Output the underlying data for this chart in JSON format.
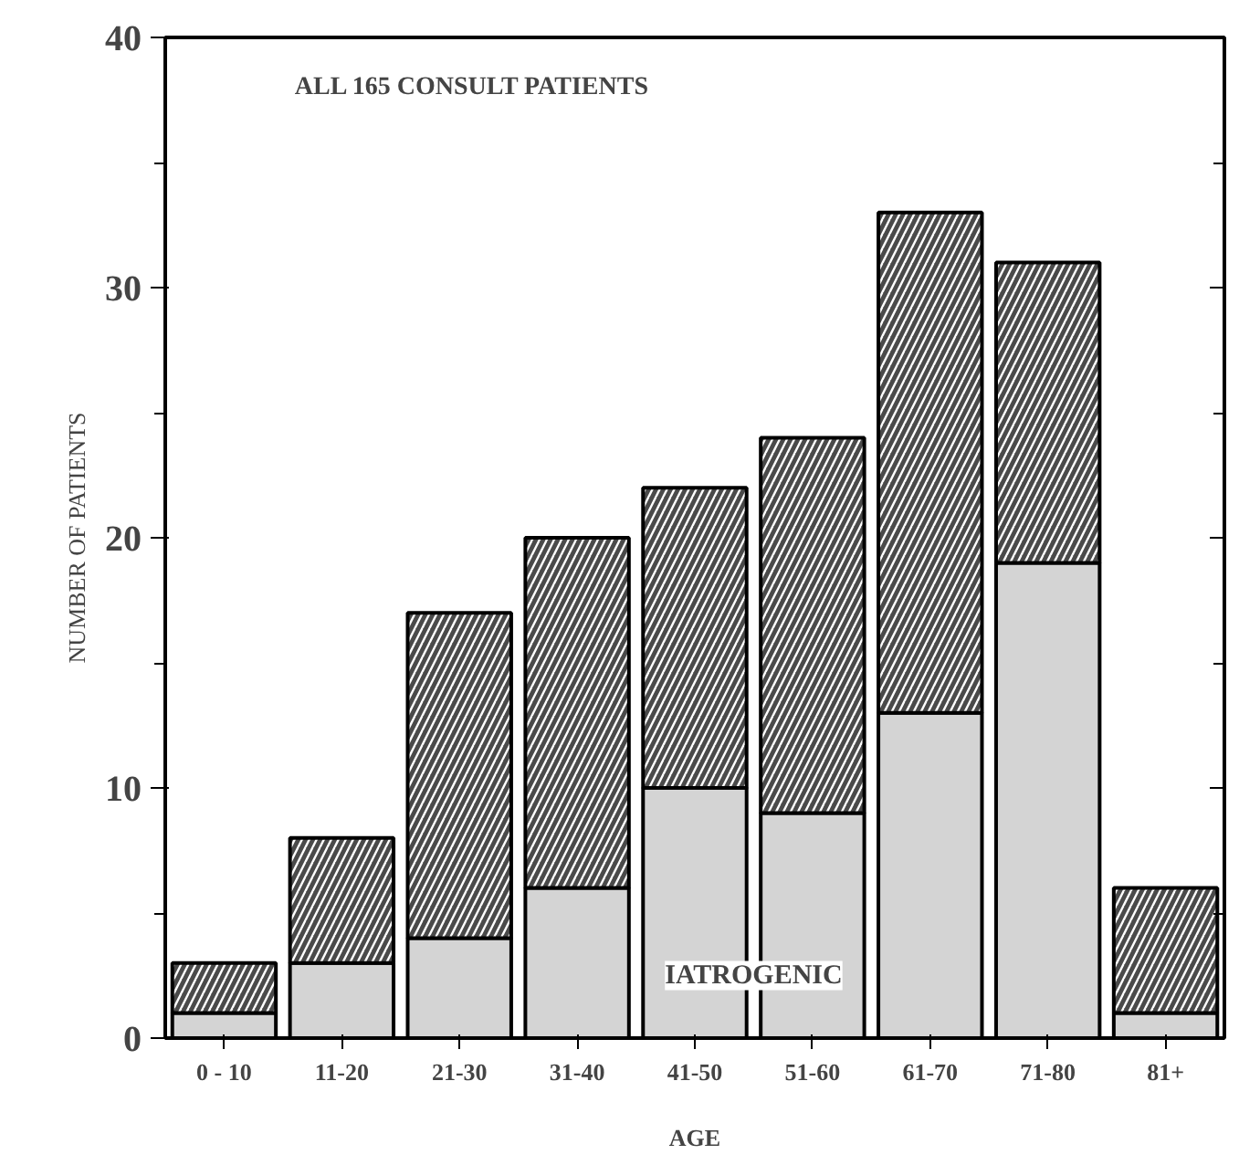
{
  "chart_data": {
    "type": "bar",
    "title": "ALL 165 CONSULT PATIENTS",
    "xlabel": "AGE",
    "ylabel": "NUMBER OF PATIENTS",
    "categories": [
      "0 - 10",
      "11-20",
      "21-30",
      "31-40",
      "41-50",
      "51-60",
      "61-70",
      "71-80",
      "81+"
    ],
    "stacked": true,
    "series": [
      {
        "name": "IATROGENIC",
        "color": "#d4d4d4",
        "values": [
          1,
          3,
          4,
          6,
          10,
          9,
          13,
          19,
          1
        ]
      },
      {
        "color": "#4a4a4a",
        "values": [
          2,
          5,
          13,
          14,
          12,
          15,
          20,
          12,
          5
        ]
      }
    ],
    "ylim": [
      0,
      40
    ],
    "yticks": [
      0,
      10,
      20,
      30,
      40
    ],
    "grid": false
  }
}
